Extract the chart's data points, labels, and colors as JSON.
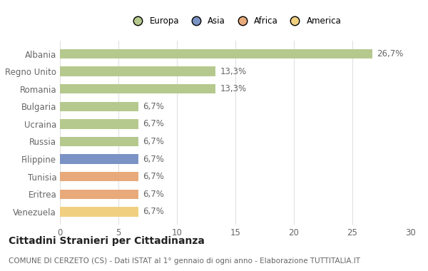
{
  "categories": [
    "Albania",
    "Regno Unito",
    "Romania",
    "Bulgaria",
    "Ucraina",
    "Russia",
    "Filippine",
    "Tunisia",
    "Eritrea",
    "Venezuela"
  ],
  "values": [
    26.7,
    13.3,
    13.3,
    6.7,
    6.7,
    6.7,
    6.7,
    6.7,
    6.7,
    6.7
  ],
  "labels": [
    "26,7%",
    "13,3%",
    "13,3%",
    "6,7%",
    "6,7%",
    "6,7%",
    "6,7%",
    "6,7%",
    "6,7%",
    "6,7%"
  ],
  "colors": [
    "#b5c98e",
    "#b5c98e",
    "#b5c98e",
    "#b5c98e",
    "#b5c98e",
    "#b5c98e",
    "#7b93c4",
    "#e8aa7a",
    "#e8aa7a",
    "#f0d080"
  ],
  "legend": [
    {
      "label": "Europa",
      "color": "#b5c98e"
    },
    {
      "label": "Asia",
      "color": "#7b93c4"
    },
    {
      "label": "Africa",
      "color": "#e8aa7a"
    },
    {
      "label": "America",
      "color": "#f0d080"
    }
  ],
  "xlim": [
    0,
    30
  ],
  "xticks": [
    0,
    5,
    10,
    15,
    20,
    25,
    30
  ],
  "title": "Cittadini Stranieri per Cittadinanza",
  "subtitle": "COMUNE DI CERZETO (CS) - Dati ISTAT al 1° gennaio di ogni anno - Elaborazione TUTTITALIA.IT",
  "background_color": "#ffffff",
  "bar_height": 0.55,
  "grid_color": "#e0e0e0",
  "label_fontsize": 8.5,
  "tick_fontsize": 8.5,
  "title_fontsize": 10,
  "subtitle_fontsize": 7.5
}
